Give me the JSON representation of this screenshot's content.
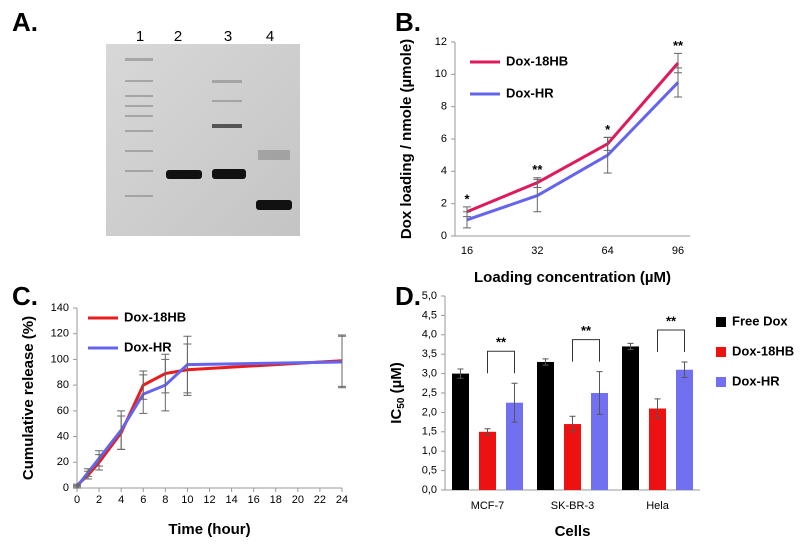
{
  "gel": {
    "panel_label": "A.",
    "lanes": [
      "1",
      "2",
      "3",
      "4"
    ]
  },
  "chart_data": [
    {
      "type": "line",
      "panel_label": "B.",
      "categories": [
        "16",
        "32",
        "64",
        "96"
      ],
      "xlabel": "Loading concentration (µM)",
      "ylabel": "Dox loading / nmole (µmole)",
      "ylim": [
        0,
        12
      ],
      "yticks": [
        0,
        2,
        4,
        6,
        8,
        10,
        12
      ],
      "series": [
        {
          "name": "Dox-18HB",
          "color": "#e0195a",
          "values": [
            1.5,
            3.3,
            5.7,
            10.7
          ],
          "errors": [
            0.3,
            0.3,
            0.4,
            0.6
          ]
        },
        {
          "name": "Dox-HR",
          "color": "#6464ee",
          "values": [
            1.0,
            2.5,
            5.0,
            9.5
          ],
          "errors": [
            0.5,
            1.0,
            1.1,
            0.9
          ]
        }
      ],
      "annotations": [
        "*",
        "**",
        "*",
        "**"
      ],
      "legend": "upper left"
    },
    {
      "type": "line",
      "panel_label": "C.",
      "x": [
        0,
        1,
        2,
        4,
        6,
        8,
        10,
        24
      ],
      "xlabel": "Time (hour)",
      "ylabel": "Cumulative release (%)",
      "xlim": [
        0,
        24
      ],
      "xticks": [
        0,
        2,
        4,
        6,
        8,
        10,
        12,
        14,
        16,
        18,
        20,
        22,
        24
      ],
      "ylim": [
        0,
        140
      ],
      "yticks": [
        0,
        20,
        40,
        60,
        80,
        100,
        120,
        140
      ],
      "series": [
        {
          "name": "Dox-18HB",
          "color": "#e81c1c",
          "values": [
            2,
            10,
            20,
            43,
            80,
            89,
            92,
            99
          ],
          "errors": [
            1,
            3,
            6,
            13,
            11,
            15,
            20,
            20
          ]
        },
        {
          "name": "Dox-HR",
          "color": "#6464ee",
          "values": [
            1,
            12,
            23,
            45,
            73,
            80,
            96,
            98
          ],
          "errors": [
            1,
            3,
            6,
            15,
            15,
            20,
            22,
            20
          ]
        }
      ],
      "legend": "upper left"
    },
    {
      "type": "bar",
      "panel_label": "D.",
      "categories": [
        "MCF-7",
        "SK-BR-3",
        "Hela"
      ],
      "xlabel": "Cells",
      "ylabel_parts": [
        "IC",
        "50",
        " (µM)"
      ],
      "ylim": [
        0,
        5
      ],
      "yticks": [
        {
          "value": 0,
          "label": "0,0"
        },
        {
          "value": 0.5,
          "label": "0,5"
        },
        {
          "value": 1,
          "label": "1,0"
        },
        {
          "value": 1.5,
          "label": "1,5"
        },
        {
          "value": 2,
          "label": "2,0"
        },
        {
          "value": 2.5,
          "label": "2,5"
        },
        {
          "value": 3,
          "label": "3,0"
        },
        {
          "value": 3.5,
          "label": "3,5"
        },
        {
          "value": 4,
          "label": "4,0"
        },
        {
          "value": 4.5,
          "label": "4,5"
        },
        {
          "value": 5,
          "label": "5,0"
        }
      ],
      "series": [
        {
          "name": "Free Dox",
          "color": "#000000",
          "values": [
            3.0,
            3.3,
            3.7
          ],
          "errors": [
            0.12,
            0.08,
            0.08
          ]
        },
        {
          "name": "Dox-18HB",
          "color": "#ee1111",
          "values": [
            1.5,
            1.7,
            2.1
          ],
          "errors": [
            0.08,
            0.2,
            0.25
          ]
        },
        {
          "name": "Dox-HR",
          "color": "#7070f0",
          "values": [
            2.25,
            2.5,
            3.1
          ],
          "errors": [
            0.5,
            0.55,
            0.2
          ]
        }
      ],
      "annotations": [
        "**",
        "**",
        "**"
      ],
      "legend": "right"
    }
  ]
}
